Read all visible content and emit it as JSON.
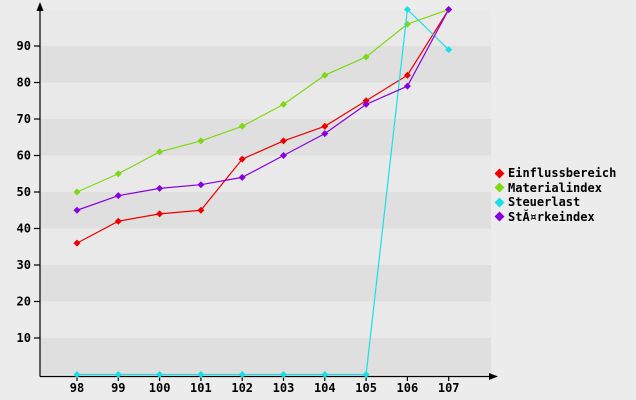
{
  "window": {
    "background_color": "#ececec",
    "plot_band_dark": "#dfdfdf",
    "plot_band_light": "#e9e9e9",
    "axis_color": "#000000",
    "text_color": "#000000"
  },
  "chart_data": {
    "type": "line",
    "title": "",
    "xlabel": "",
    "ylabel": "",
    "x": [
      98,
      99,
      100,
      101,
      102,
      103,
      104,
      105,
      106,
      107
    ],
    "x_tick_labels": [
      "98",
      "99",
      "100",
      "101",
      "102",
      "103",
      "104",
      "105",
      "106",
      "107"
    ],
    "y_ticks": [
      10,
      20,
      30,
      40,
      50,
      60,
      70,
      80,
      90
    ],
    "ylim": [
      0,
      103
    ],
    "grid": "alternating horizontal bands every 10 units",
    "legend_position": "right",
    "marker": "diamond",
    "series": [
      {
        "name": "Einflussbereich",
        "color": "#ee0000",
        "values": [
          36,
          42,
          44,
          45,
          59,
          64,
          68,
          75,
          82,
          100
        ]
      },
      {
        "name": "Materialindex",
        "color": "#7ed914",
        "values": [
          50,
          55,
          61,
          64,
          68,
          74,
          82,
          87,
          96,
          100
        ]
      },
      {
        "name": "Steuerlast",
        "color": "#18e0e8",
        "values": [
          0,
          0,
          0,
          0,
          0,
          0,
          0,
          0,
          100,
          89
        ]
      },
      {
        "name": "StĂ¤rkeindex",
        "color": "#8800dd",
        "values": [
          45,
          49,
          51,
          52,
          54,
          60,
          66,
          74,
          79,
          100
        ]
      }
    ]
  }
}
